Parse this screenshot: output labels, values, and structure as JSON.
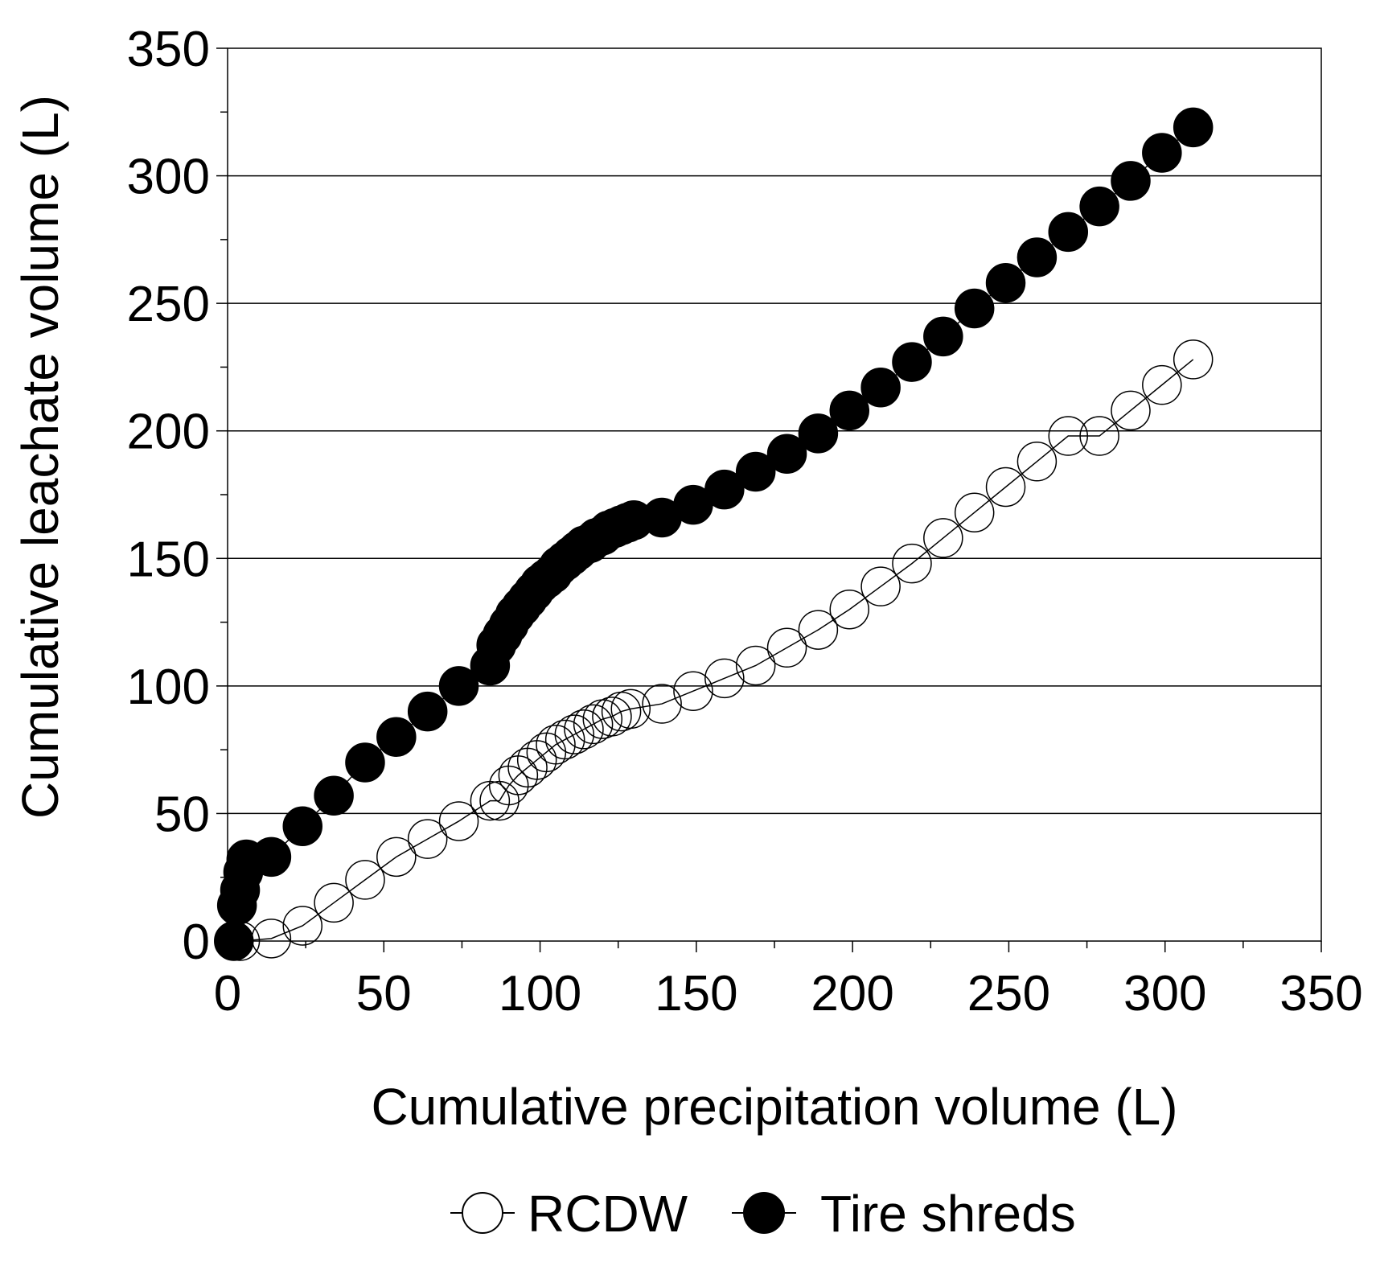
{
  "chart_data": {
    "type": "scatter",
    "title": "",
    "xlabel": "Cumulative precipitation volume (L)",
    "ylabel": "Cumulative leachate volume (L)",
    "xlim": [
      0,
      350
    ],
    "ylim": [
      0,
      350
    ],
    "xticks": [
      "0",
      "50",
      "100",
      "150",
      "200",
      "250",
      "300",
      "350"
    ],
    "yticks": [
      "0",
      "50",
      "100",
      "150",
      "200",
      "250",
      "300",
      "350"
    ],
    "grid": "horizontal",
    "legend": "bottom",
    "series": [
      {
        "name": "RCDW",
        "marker": "open-circle",
        "color": "#000000",
        "x": [
          4,
          14,
          24,
          34,
          44,
          54,
          64,
          74,
          84,
          87,
          90,
          93,
          96,
          99,
          102,
          105,
          108,
          111,
          114,
          117,
          120,
          123,
          126,
          129,
          139,
          149,
          159,
          169,
          179,
          189,
          199,
          209,
          219,
          229,
          239,
          249,
          259,
          269,
          279,
          289,
          299,
          309
        ],
        "y": [
          0,
          1,
          6,
          15,
          24,
          33,
          40,
          47,
          55,
          55,
          61,
          65,
          68,
          71,
          74,
          77,
          79,
          81,
          83,
          85,
          87,
          88,
          90,
          91,
          93,
          98,
          103,
          108,
          115,
          122,
          130,
          139,
          148,
          158,
          168,
          178,
          188,
          198,
          198,
          208,
          218,
          228
        ]
      },
      {
        "name": "Tire shreds",
        "marker": "filled-circle",
        "color": "#000000",
        "x": [
          2,
          3,
          4,
          5,
          6,
          14,
          24,
          34,
          44,
          54,
          64,
          74,
          84,
          86,
          88,
          90,
          92,
          94,
          96,
          98,
          100,
          102,
          104,
          106,
          108,
          110,
          112,
          114,
          116,
          118,
          120,
          122,
          124,
          126,
          128,
          130,
          139,
          149,
          159,
          169,
          179,
          189,
          199,
          209,
          219,
          229,
          239,
          249,
          259,
          269,
          279,
          289,
          299,
          309
        ],
        "y": [
          0,
          14,
          20,
          27,
          32,
          33,
          45,
          57,
          70,
          80,
          90,
          100,
          108,
          116,
          120,
          124,
          128,
          131,
          134,
          137,
          140,
          142,
          144,
          147,
          149,
          151,
          153,
          155,
          156,
          158,
          159,
          161,
          162,
          163,
          164,
          165,
          166,
          171,
          177,
          184,
          191,
          199,
          208,
          217,
          227,
          237,
          248,
          258,
          268,
          278,
          288,
          298,
          309,
          319
        ]
      }
    ]
  }
}
